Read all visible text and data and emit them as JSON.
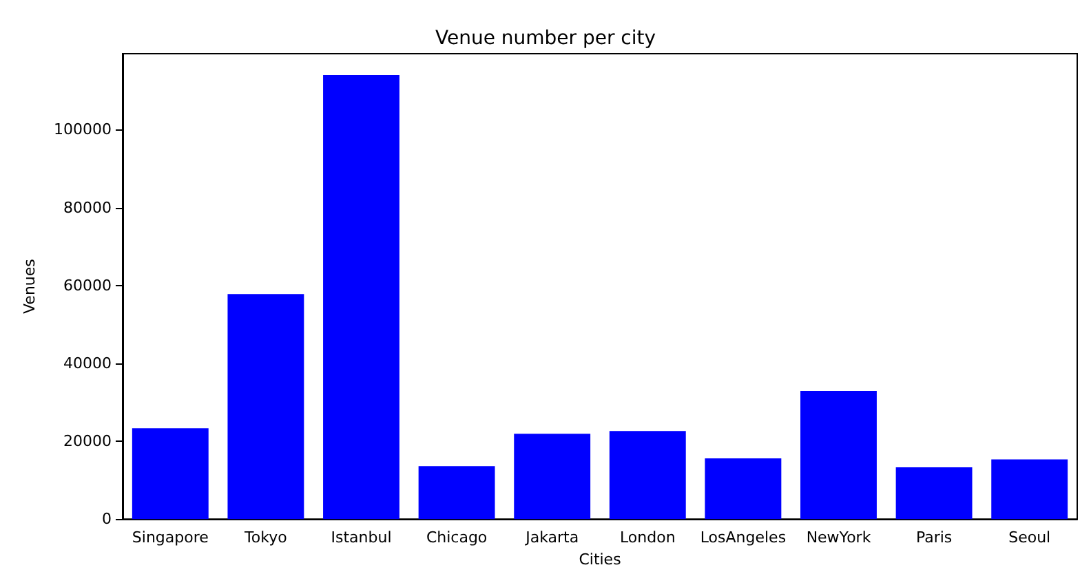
{
  "chart_data": {
    "type": "bar",
    "title": "Venue number per city",
    "xlabel": "Cities",
    "ylabel": "Venues",
    "categories": [
      "Singapore",
      "Tokyo",
      "Istanbul",
      "Chicago",
      "Jakarta",
      "London",
      "LosAngeles",
      "NewYork",
      "Paris",
      "Seoul"
    ],
    "values": [
      23300,
      57800,
      114000,
      13600,
      21900,
      22600,
      15600,
      32900,
      13300,
      15300
    ],
    "color": "#0000ff",
    "ylim": [
      0,
      119500
    ],
    "yticks": [
      0,
      20000,
      40000,
      60000,
      80000,
      100000
    ],
    "grid": false
  }
}
